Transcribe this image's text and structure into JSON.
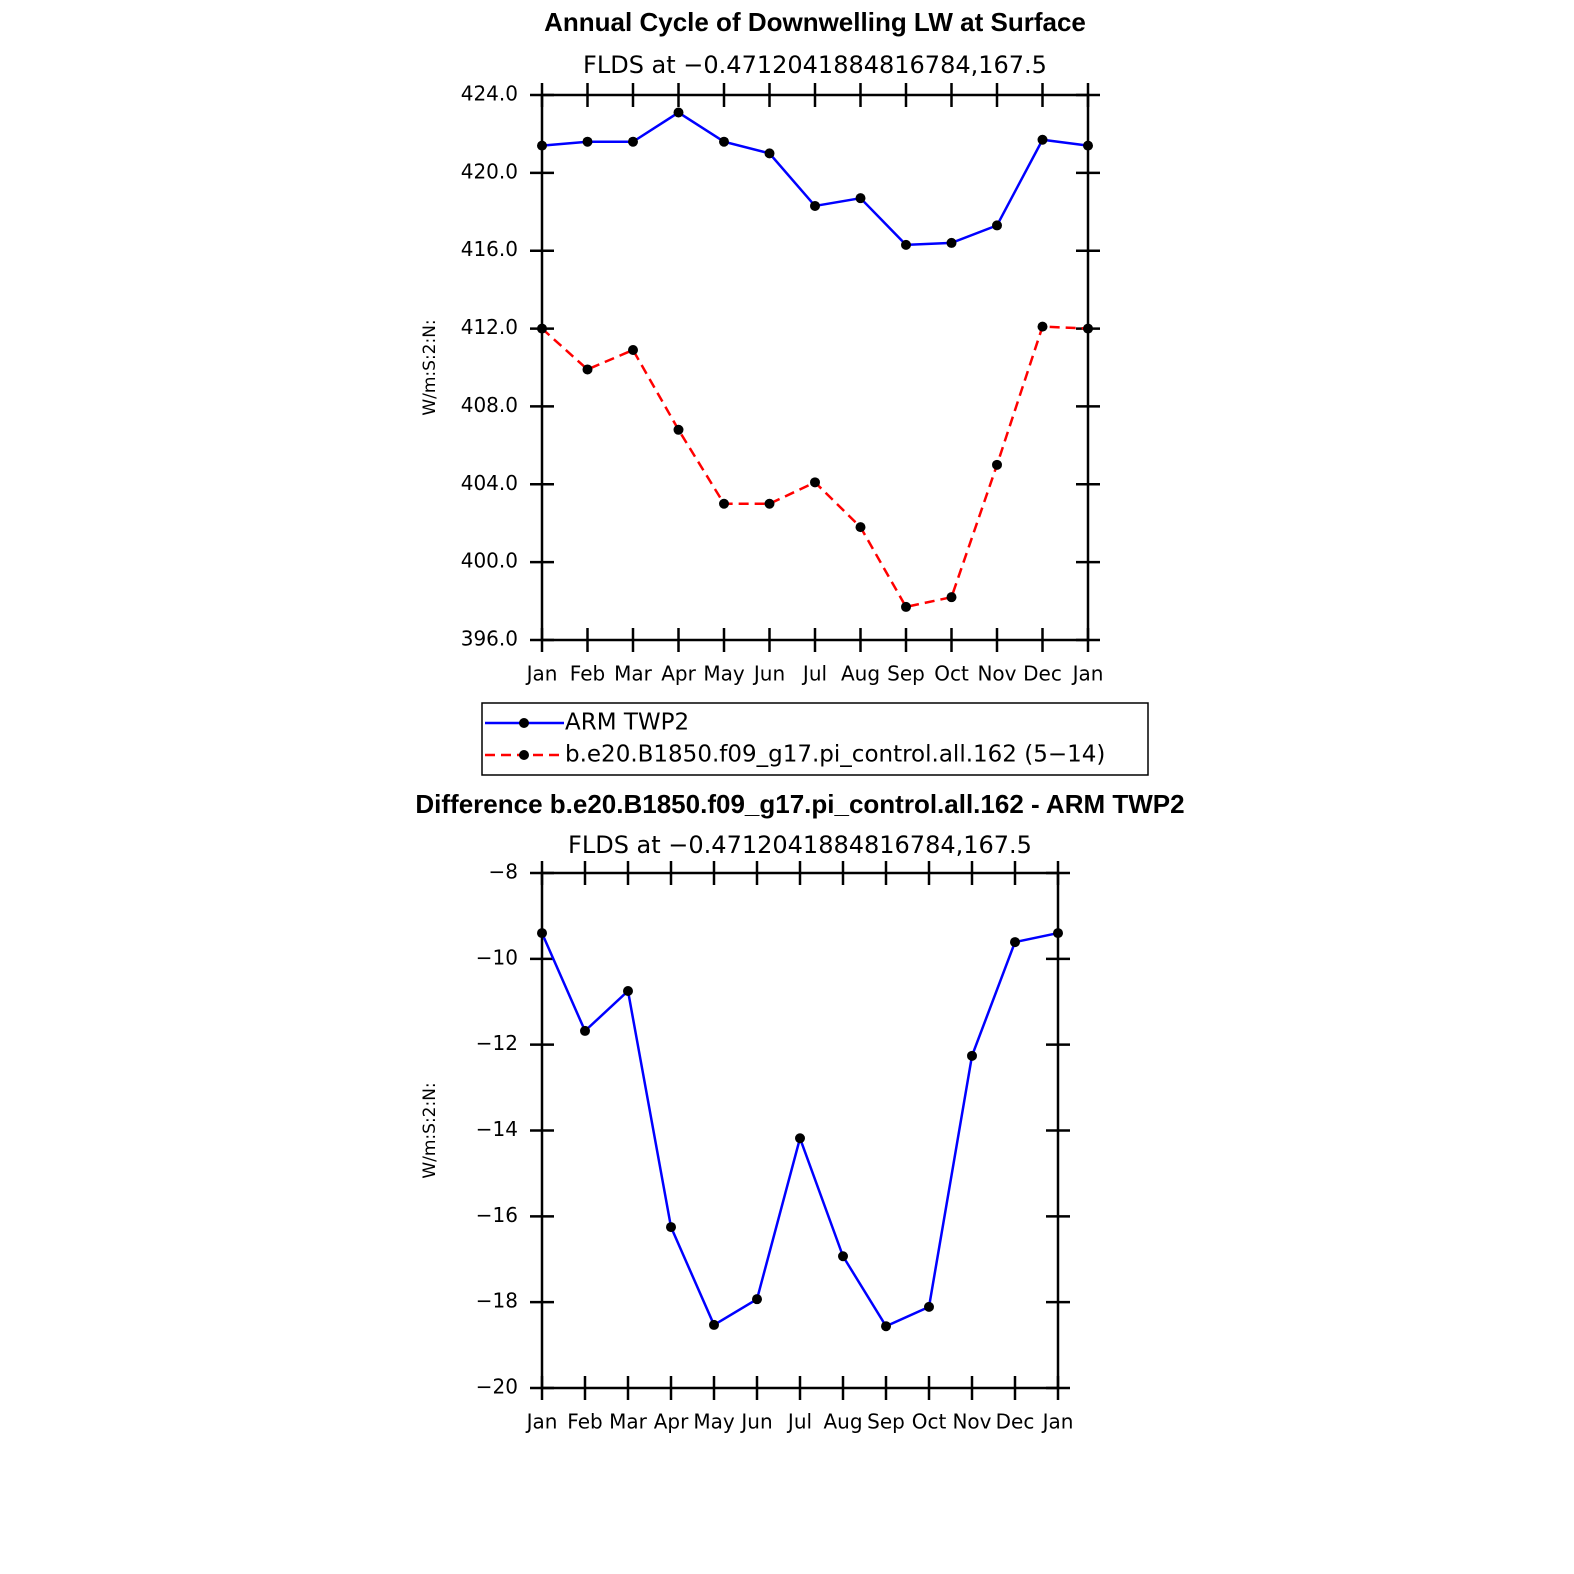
{
  "chart_data": [
    {
      "type": "line",
      "title": "Annual Cycle of Downwelling LW at Surface",
      "subtitle": "FLDS at −0.4712041884816784,167.5",
      "y_label": "W/m:S:2:N:",
      "categories": [
        "Jan",
        "Feb",
        "Mar",
        "Apr",
        "May",
        "Jun",
        "Jul",
        "Aug",
        "Sep",
        "Oct",
        "Nov",
        "Dec",
        "Jan"
      ],
      "series": [
        {
          "name": "ARM TWP2",
          "color": "#0000ff",
          "line_style": "solid",
          "values": [
            421.4,
            421.6,
            421.6,
            423.1,
            421.6,
            421.0,
            418.3,
            418.7,
            416.3,
            416.4,
            417.3,
            421.7,
            421.4
          ]
        },
        {
          "name": "b.e20.B1850.f09_g17.pi_control.all.162 (5−14)",
          "color": "#ff0000",
          "line_style": "dashed",
          "values": [
            412.0,
            409.9,
            410.9,
            406.8,
            403.0,
            403.0,
            404.1,
            401.8,
            397.7,
            398.2,
            405.0,
            412.1,
            412.0
          ]
        }
      ],
      "ylim": [
        396,
        424
      ],
      "yticks": [
        {
          "value": 396,
          "label": "396.0"
        },
        {
          "value": 400,
          "label": "400.0"
        },
        {
          "value": 404,
          "label": "404.0"
        },
        {
          "value": 408,
          "label": "408.0"
        },
        {
          "value": 412,
          "label": "412.0"
        },
        {
          "value": 416,
          "label": "416.0"
        },
        {
          "value": 420,
          "label": "420.0"
        },
        {
          "value": 424,
          "label": "424.0"
        }
      ],
      "legend": "bottom"
    },
    {
      "type": "line",
      "title": "Difference b.e20.B1850.f09_g17.pi_control.all.162 - ARM TWP2",
      "subtitle": "FLDS at −0.4712041884816784,167.5",
      "y_label": "W/m:S:2:N:",
      "categories": [
        "Jan",
        "Feb",
        "Mar",
        "Apr",
        "May",
        "Jun",
        "Jul",
        "Aug",
        "Sep",
        "Oct",
        "Nov",
        "Dec",
        "Jan"
      ],
      "series": [
        {
          "color": "#0000ff",
          "line_style": "solid",
          "values": [
            -9.4,
            -11.68,
            -10.75,
            -16.25,
            -18.53,
            -17.93,
            -14.18,
            -16.93,
            -18.56,
            -18.11,
            -12.26,
            -9.61,
            -9.4
          ]
        }
      ],
      "ylim": [
        -20,
        -8
      ],
      "yticks": [
        {
          "value": -20,
          "label": "−20"
        },
        {
          "value": -18,
          "label": "−18"
        },
        {
          "value": -16,
          "label": "−16"
        },
        {
          "value": -14,
          "label": "−14"
        },
        {
          "value": -12,
          "label": "−12"
        },
        {
          "value": -10,
          "label": "−10"
        },
        {
          "value": -8,
          "label": "−8"
        }
      ]
    }
  ]
}
